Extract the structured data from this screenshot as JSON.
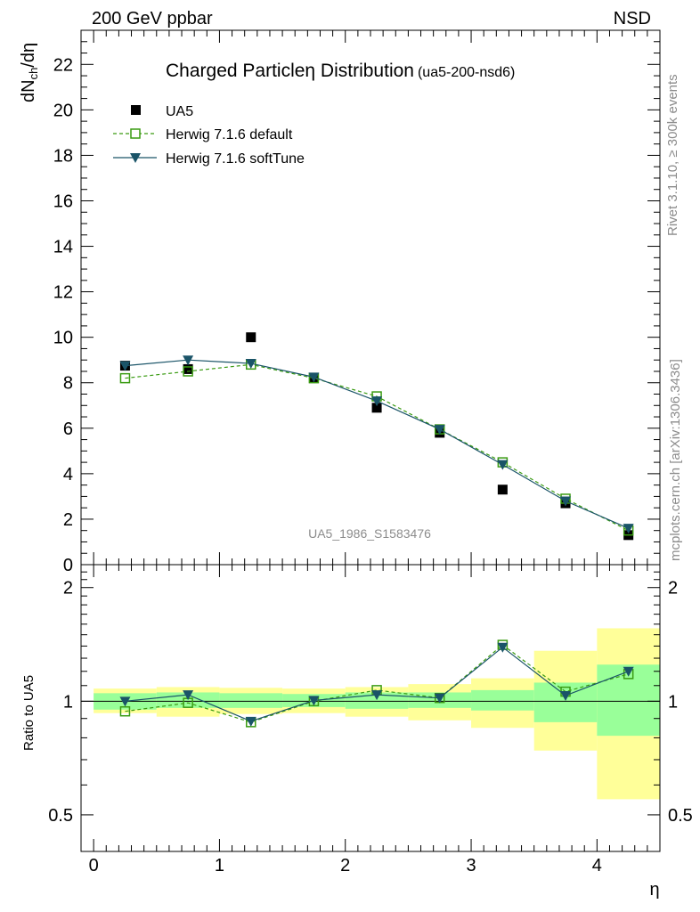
{
  "header": {
    "left": "200 GeV ppbar",
    "right": "NSD"
  },
  "side_texts": {
    "rivet": "Rivet 3.1.10, ≥ 300k events",
    "mcplots": "mcplots.cern.ch [arXiv:1306.3436]"
  },
  "chart_data": [
    {
      "type": "scatter",
      "title": "Charged Particleη Distribution",
      "subtitle": "(ua5-200-nsd6)",
      "watermark": "UA5_1986_S1583476",
      "ylabel_main": "dN",
      "ylabel_sub": "ch",
      "ylabel_tail": "/dη",
      "ylim": [
        0,
        23.5
      ],
      "xlim": [
        -0.1,
        4.5
      ],
      "x": [
        0.25,
        0.75,
        1.25,
        1.75,
        2.25,
        2.75,
        3.25,
        3.75,
        4.25
      ],
      "yticks": [
        0,
        2,
        4,
        6,
        8,
        10,
        12,
        14,
        16,
        18,
        20,
        22
      ],
      "ytick_labels": [
        "0",
        "2",
        "4",
        "6",
        "8",
        "10",
        "12",
        "14",
        "16",
        "18",
        "20",
        "22"
      ],
      "series": [
        {
          "name": "UA5",
          "marker": "square-filled",
          "color": "#000000",
          "values": [
            8.75,
            8.6,
            10.0,
            8.2,
            6.9,
            5.8,
            3.3,
            2.7,
            1.3
          ]
        },
        {
          "name": "Herwig 7.1.6 default",
          "marker": "square-open",
          "line": "dashed",
          "color": "#3a9b12",
          "values": [
            8.2,
            8.5,
            8.8,
            8.2,
            7.4,
            5.95,
            4.5,
            2.9,
            1.5
          ]
        },
        {
          "name": "Herwig 7.1.6 softTune",
          "marker": "triangle-down",
          "line": "solid",
          "color": "#1a5468",
          "values": [
            8.75,
            9.0,
            8.85,
            8.25,
            7.2,
            5.95,
            4.4,
            2.8,
            1.6
          ]
        }
      ]
    },
    {
      "type": "scatter",
      "ylabel": "Ratio to UA5",
      "xlabel": "η",
      "ylog": true,
      "ylim": [
        0.4,
        2.3
      ],
      "xlim": [
        -0.1,
        4.5
      ],
      "x": [
        0.25,
        0.75,
        1.25,
        1.75,
        2.25,
        2.75,
        3.25,
        3.75,
        4.25
      ],
      "yticks": [
        0.5,
        1,
        2
      ],
      "ytick_labels": [
        "0.5",
        "1",
        "2"
      ],
      "xticks": [
        0,
        1,
        2,
        3,
        4
      ],
      "xtick_labels": [
        "0",
        "1",
        "2",
        "3",
        "4"
      ],
      "bins": [
        [
          0,
          0.5
        ],
        [
          0.5,
          1.0
        ],
        [
          1.0,
          1.5
        ],
        [
          1.5,
          2.0
        ],
        [
          2.0,
          2.5
        ],
        [
          2.5,
          3.0
        ],
        [
          3.0,
          3.5
        ],
        [
          3.5,
          4.0
        ],
        [
          4.0,
          4.5
        ]
      ],
      "band_stat": [
        [
          0.95,
          1.05
        ],
        [
          0.96,
          1.055
        ],
        [
          0.96,
          1.05
        ],
        [
          0.965,
          1.045
        ],
        [
          0.955,
          1.055
        ],
        [
          0.96,
          1.055
        ],
        [
          0.945,
          1.07
        ],
        [
          0.88,
          1.12
        ],
        [
          0.81,
          1.25
        ]
      ],
      "band_total": [
        [
          0.93,
          1.08
        ],
        [
          0.91,
          1.09
        ],
        [
          0.925,
          1.085
        ],
        [
          0.93,
          1.08
        ],
        [
          0.91,
          1.09
        ],
        [
          0.89,
          1.11
        ],
        [
          0.85,
          1.15
        ],
        [
          0.74,
          1.36
        ],
        [
          0.55,
          1.56
        ]
      ],
      "band_colors": {
        "stat": "#99ff99",
        "total": "#ffff99"
      },
      "series": [
        {
          "name": "Herwig 7.1.6 default",
          "marker": "square-open",
          "line": "dashed",
          "color": "#3a9b12",
          "values": [
            0.94,
            0.99,
            0.88,
            1.0,
            1.07,
            1.02,
            1.41,
            1.06,
            1.18
          ]
        },
        {
          "name": "Herwig 7.1.6 softTune",
          "marker": "triangle-down",
          "line": "solid",
          "color": "#1a5468",
          "values": [
            1.0,
            1.04,
            0.885,
            1.005,
            1.04,
            1.02,
            1.39,
            1.035,
            1.2
          ]
        }
      ]
    }
  ]
}
